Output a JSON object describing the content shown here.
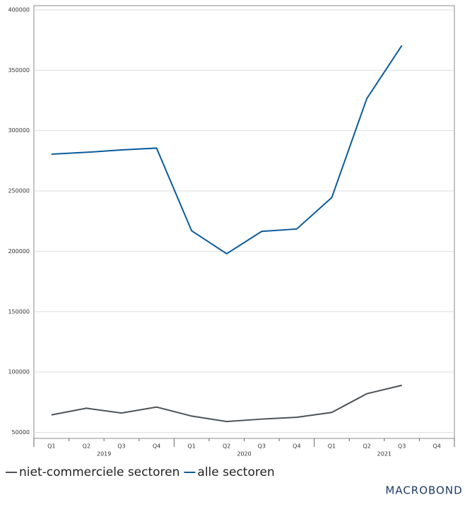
{
  "chart_data": {
    "type": "line",
    "categories": [
      "Q1",
      "Q2",
      "Q3",
      "Q4",
      "Q1",
      "Q2",
      "Q3",
      "Q4",
      "Q1",
      "Q2",
      "Q3",
      "Q4"
    ],
    "years": [
      "2019",
      "2020",
      "2021"
    ],
    "series": [
      {
        "name": "niet-commerciele sectoren",
        "color": "#4d5358",
        "values": [
          64500,
          70000,
          66000,
          71000,
          63500,
          59000,
          61000,
          62500,
          66500,
          82000,
          89000,
          null
        ]
      },
      {
        "name": "alle sectoren",
        "color": "#0a5c9c",
        "values": [
          280500,
          282000,
          284000,
          285500,
          217000,
          198000,
          216500,
          218500,
          244500,
          326500,
          370500,
          null
        ]
      }
    ],
    "ylim": [
      45000,
      403500
    ],
    "yticks": [
      50000,
      100000,
      150000,
      200000,
      250000,
      300000,
      350000,
      400000
    ],
    "grid": true,
    "source": "MACROBOND"
  }
}
